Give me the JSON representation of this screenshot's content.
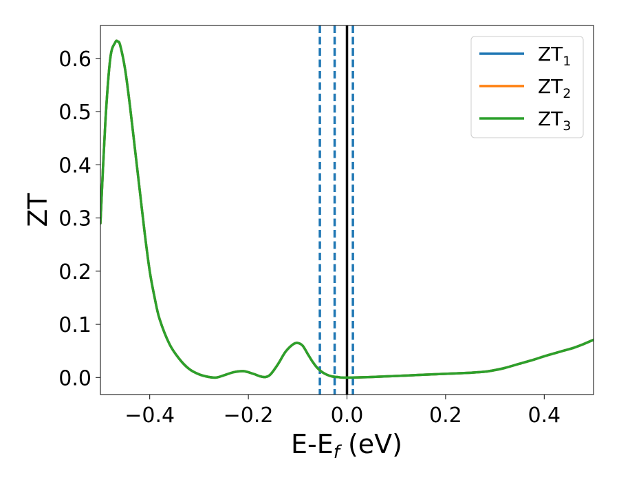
{
  "chart_data": {
    "type": "line",
    "title": "",
    "xlabel": "E-E",
    "xlabel_sub": "f",
    "xlabel_unit": " (eV)",
    "ylabel": "ZT",
    "xlim": [
      -0.5,
      0.5
    ],
    "ylim": [
      -0.032,
      0.662
    ],
    "xticks": [
      -0.4,
      -0.2,
      0.0,
      0.2,
      0.4
    ],
    "xtick_labels": [
      "−0.4",
      "−0.2",
      "0.0",
      "0.2",
      "0.4"
    ],
    "yticks": [
      0.0,
      0.1,
      0.2,
      0.3,
      0.4,
      0.5,
      0.6
    ],
    "ytick_labels": [
      "0.0",
      "0.1",
      "0.2",
      "0.3",
      "0.4",
      "0.5",
      "0.6"
    ],
    "grid": false,
    "legend_position": "top-right",
    "x": [
      -0.5,
      -0.49,
      -0.48,
      -0.47,
      -0.465,
      -0.46,
      -0.45,
      -0.44,
      -0.43,
      -0.42,
      -0.41,
      -0.4,
      -0.39,
      -0.38,
      -0.36,
      -0.34,
      -0.32,
      -0.3,
      -0.28,
      -0.265,
      -0.25,
      -0.23,
      -0.21,
      -0.19,
      -0.175,
      -0.165,
      -0.155,
      -0.14,
      -0.125,
      -0.11,
      -0.1,
      -0.09,
      -0.08,
      -0.07,
      -0.06,
      -0.05,
      -0.04,
      -0.03,
      -0.02,
      -0.01,
      0.0,
      0.01,
      0.05,
      0.1,
      0.15,
      0.2,
      0.25,
      0.28,
      0.3,
      0.32,
      0.35,
      0.38,
      0.4,
      0.43,
      0.46,
      0.48,
      0.5
    ],
    "series": [
      {
        "name": "ZT",
        "name_sub": "1",
        "color": "#1f77b4",
        "values": [
          0.29,
          0.48,
          0.6,
          0.63,
          0.632,
          0.625,
          0.58,
          0.51,
          0.43,
          0.35,
          0.27,
          0.2,
          0.15,
          0.11,
          0.063,
          0.035,
          0.016,
          0.006,
          0.001,
          0.0,
          0.004,
          0.01,
          0.012,
          0.007,
          0.002,
          0.001,
          0.006,
          0.025,
          0.048,
          0.062,
          0.065,
          0.06,
          0.045,
          0.03,
          0.018,
          0.01,
          0.005,
          0.002,
          0.001,
          0.0,
          0.0,
          0.0,
          0.001,
          0.003,
          0.005,
          0.007,
          0.009,
          0.011,
          0.014,
          0.018,
          0.026,
          0.034,
          0.04,
          0.048,
          0.056,
          0.063,
          0.071
        ]
      },
      {
        "name": "ZT",
        "name_sub": "2",
        "color": "#ff7f0e",
        "values": [
          0.29,
          0.48,
          0.6,
          0.63,
          0.632,
          0.625,
          0.58,
          0.51,
          0.43,
          0.35,
          0.27,
          0.2,
          0.15,
          0.11,
          0.063,
          0.035,
          0.016,
          0.006,
          0.001,
          0.0,
          0.004,
          0.01,
          0.012,
          0.007,
          0.002,
          0.001,
          0.006,
          0.025,
          0.048,
          0.062,
          0.065,
          0.06,
          0.045,
          0.03,
          0.018,
          0.01,
          0.005,
          0.002,
          0.001,
          0.0,
          0.0,
          0.0,
          0.001,
          0.003,
          0.005,
          0.007,
          0.009,
          0.011,
          0.014,
          0.018,
          0.026,
          0.034,
          0.04,
          0.048,
          0.056,
          0.063,
          0.071
        ]
      },
      {
        "name": "ZT",
        "name_sub": "3",
        "color": "#2ca02c",
        "values": [
          0.29,
          0.48,
          0.6,
          0.63,
          0.632,
          0.625,
          0.58,
          0.51,
          0.43,
          0.35,
          0.27,
          0.2,
          0.15,
          0.11,
          0.063,
          0.035,
          0.016,
          0.006,
          0.001,
          0.0,
          0.004,
          0.01,
          0.012,
          0.007,
          0.002,
          0.001,
          0.006,
          0.025,
          0.048,
          0.062,
          0.065,
          0.06,
          0.045,
          0.03,
          0.018,
          0.01,
          0.005,
          0.002,
          0.001,
          0.0,
          0.0,
          0.0,
          0.001,
          0.003,
          0.005,
          0.007,
          0.009,
          0.011,
          0.014,
          0.018,
          0.026,
          0.034,
          0.04,
          0.048,
          0.056,
          0.063,
          0.071
        ]
      }
    ],
    "vlines": [
      {
        "x": -0.055,
        "style": "dashed",
        "color": "#1f77b4"
      },
      {
        "x": -0.025,
        "style": "dashed",
        "color": "#1f77b4"
      },
      {
        "x": 0.012,
        "style": "dashed",
        "color": "#1f77b4"
      },
      {
        "x": 0.0,
        "style": "solid",
        "color": "#000000"
      }
    ]
  }
}
